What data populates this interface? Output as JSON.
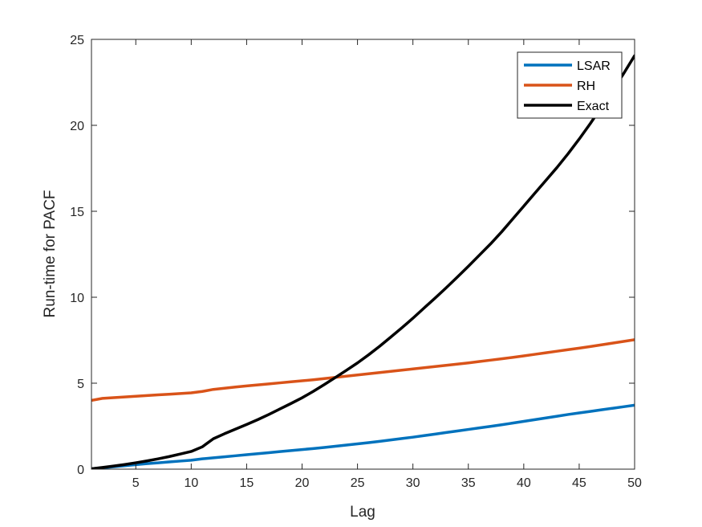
{
  "chart_data": {
    "type": "line",
    "xlabel": "Lag",
    "ylabel": "Run-time for PACF",
    "xlim": [
      1,
      50
    ],
    "ylim": [
      0,
      25
    ],
    "xticks": [
      5,
      10,
      15,
      20,
      25,
      30,
      35,
      40,
      45,
      50
    ],
    "yticks": [
      0,
      5,
      10,
      15,
      20,
      25
    ],
    "grid": false,
    "legend_position": "top-right",
    "x": [
      1,
      2,
      3,
      4,
      5,
      6,
      7,
      8,
      9,
      10,
      11,
      12,
      13,
      14,
      15,
      16,
      17,
      18,
      19,
      20,
      21,
      22,
      23,
      24,
      25,
      26,
      27,
      28,
      29,
      30,
      31,
      32,
      33,
      34,
      35,
      36,
      37,
      38,
      39,
      40,
      41,
      42,
      43,
      44,
      45,
      46,
      47,
      48,
      49,
      50
    ],
    "series": [
      {
        "name": "LSAR",
        "color": "#0072BD",
        "values": [
          0.02,
          0.08,
          0.14,
          0.2,
          0.26,
          0.32,
          0.37,
          0.42,
          0.47,
          0.52,
          0.6,
          0.66,
          0.72,
          0.78,
          0.84,
          0.9,
          0.96,
          1.02,
          1.08,
          1.14,
          1.2,
          1.26,
          1.33,
          1.4,
          1.47,
          1.54,
          1.62,
          1.7,
          1.78,
          1.86,
          1.95,
          2.04,
          2.13,
          2.22,
          2.31,
          2.4,
          2.49,
          2.58,
          2.68,
          2.78,
          2.88,
          2.98,
          3.08,
          3.18,
          3.27,
          3.36,
          3.45,
          3.54,
          3.63,
          3.72
        ]
      },
      {
        "name": "RH",
        "color": "#D95319",
        "values": [
          4.0,
          4.12,
          4.16,
          4.2,
          4.24,
          4.28,
          4.32,
          4.36,
          4.4,
          4.44,
          4.52,
          4.64,
          4.71,
          4.78,
          4.84,
          4.9,
          4.96,
          5.02,
          5.08,
          5.14,
          5.2,
          5.27,
          5.34,
          5.41,
          5.48,
          5.55,
          5.62,
          5.69,
          5.76,
          5.83,
          5.9,
          5.97,
          6.04,
          6.11,
          6.18,
          6.26,
          6.34,
          6.42,
          6.5,
          6.59,
          6.68,
          6.77,
          6.86,
          6.95,
          7.04,
          7.13,
          7.23,
          7.33,
          7.43,
          7.53
        ]
      },
      {
        "name": "Exact",
        "color": "#000000",
        "values": [
          0.02,
          0.1,
          0.18,
          0.27,
          0.37,
          0.48,
          0.6,
          0.73,
          0.88,
          1.03,
          1.3,
          1.77,
          2.06,
          2.33,
          2.6,
          2.88,
          3.18,
          3.5,
          3.82,
          4.15,
          4.52,
          4.92,
          5.33,
          5.75,
          6.18,
          6.65,
          7.15,
          7.68,
          8.22,
          8.78,
          9.37,
          9.95,
          10.55,
          11.17,
          11.8,
          12.45,
          13.1,
          13.8,
          14.55,
          15.3,
          16.05,
          16.8,
          17.55,
          18.35,
          19.2,
          20.1,
          21.05,
          22.0,
          23.0,
          24.05
        ]
      }
    ]
  }
}
